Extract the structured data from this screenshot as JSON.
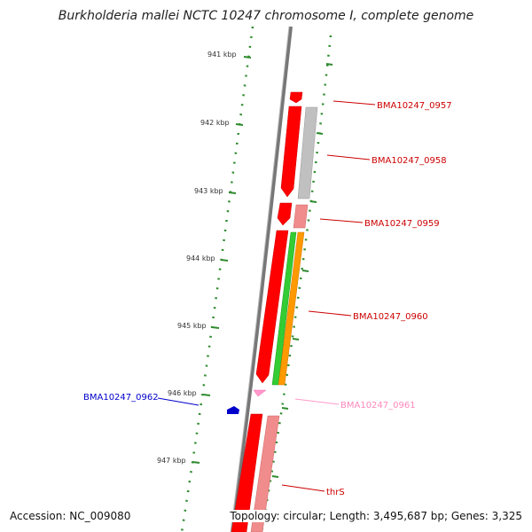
{
  "title": "Burkholderia mallei NCTC 10247 chromosome I, complete genome",
  "accession": "Accession: NC_009080",
  "footer": "Topology: circular; Length: 3,495,687 bp; Genes: 3,325",
  "colors": {
    "backbone": "#777777",
    "tick": "#2e8b2e",
    "cds": "#ff0000",
    "cds_light": "#f08c8c",
    "gene_grey": "#c0c0c0",
    "green": "#33cc33",
    "orange": "#ff9900",
    "blue": "#0000cc",
    "pink": "#ff99cc"
  },
  "scale_ticks": [
    {
      "label": "941 kbp"
    },
    {
      "label": "942 kbp"
    },
    {
      "label": "943 kbp"
    },
    {
      "label": "944 kbp"
    },
    {
      "label": "945 kbp"
    },
    {
      "label": "946 kbp"
    },
    {
      "label": "947 kbp"
    }
  ],
  "gene_labels": [
    {
      "name": "BMA10247_0957",
      "color": "#cc0000"
    },
    {
      "name": "BMA10247_0958",
      "color": "#cc0000"
    },
    {
      "name": "BMA10247_0959",
      "color": "#cc0000"
    },
    {
      "name": "BMA10247_0960",
      "color": "#cc0000"
    },
    {
      "name": "BMA10247_0961",
      "color": "#ff88bb"
    },
    {
      "name": "BMA10247_0962",
      "color": "#0000cc"
    },
    {
      "name": "thrS",
      "color": "#cc0000"
    }
  ]
}
